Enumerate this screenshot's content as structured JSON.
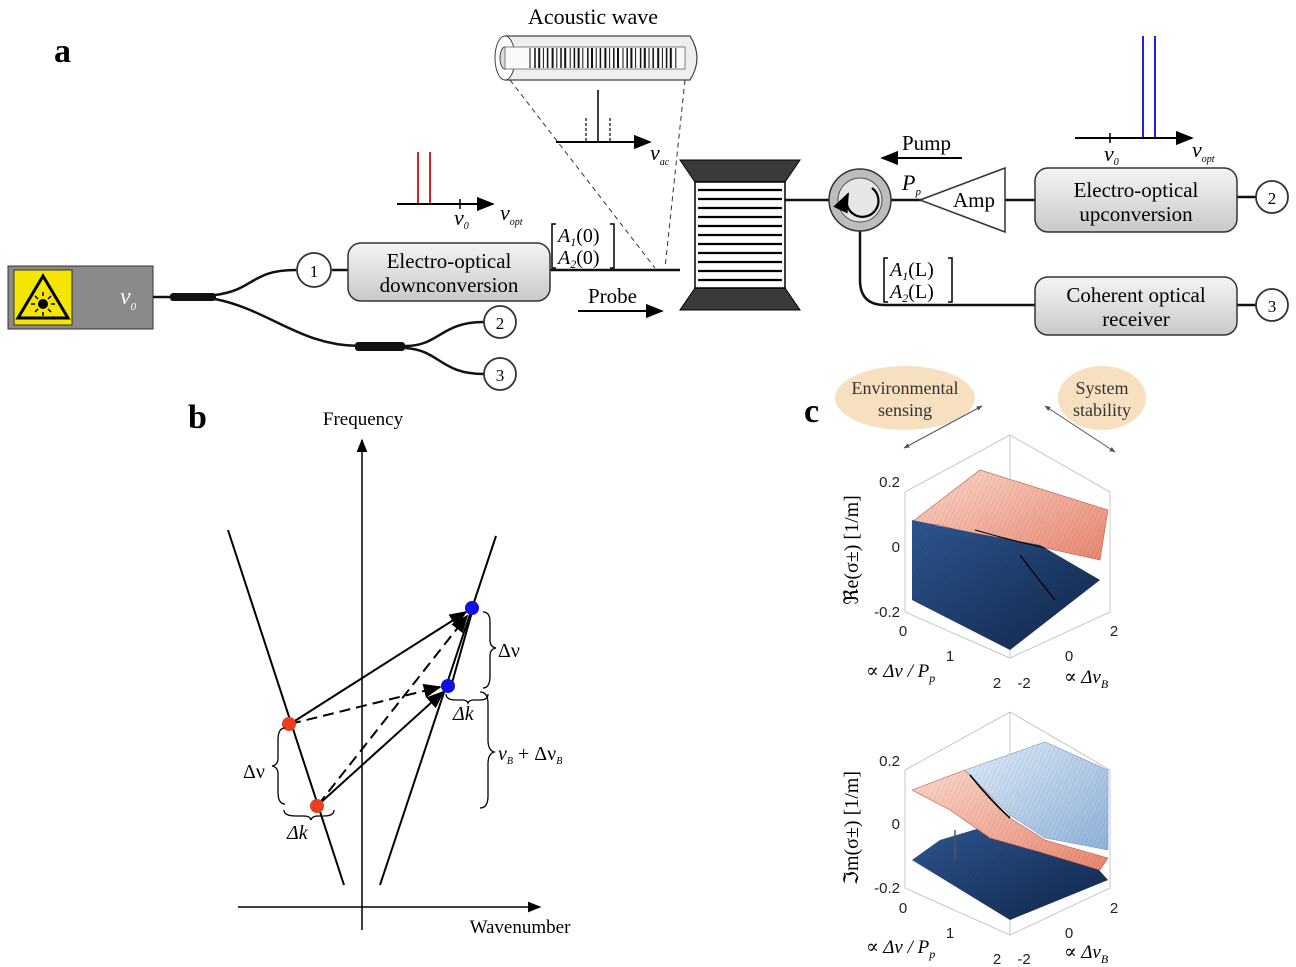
{
  "panels": {
    "a": {
      "label": "a",
      "acoustic_title": "Acoustic wave",
      "nu_ac_symbol": "ν",
      "nu_ac_sub": "ac",
      "nu_opt_symbol": "ν",
      "nu_opt_sub": "opt",
      "nu0_symbol": "ν",
      "nu0_sub": "0",
      "laser_label_symbol": "ν",
      "laser_label_sub": "0",
      "downconv_line1": "Electro-optical",
      "downconv_line2": "downconversion",
      "upconv_line1": "Electro-optical",
      "upconv_line2": "upconversion",
      "receiver_line1": "Coherent optical",
      "receiver_line2": "receiver",
      "amp_label": "Amp",
      "pump_label": "Pump",
      "pp_symbol": "P",
      "pp_sub": "p",
      "probe_label": "Probe",
      "a_in_1": "A",
      "a_in_1_sub": "1",
      "a_in_1_arg": "(0)",
      "a_in_2": "A",
      "a_in_2_sub": "2",
      "a_in_2_arg": "(0)",
      "a_out_1": "A",
      "a_out_1_sub": "1",
      "a_out_1_arg": "(L)",
      "a_out_2": "A",
      "a_out_2_sub": "2",
      "a_out_2_arg": "(L)",
      "ports": [
        "1",
        "2",
        "3",
        "2",
        "3"
      ]
    },
    "b": {
      "label": "b",
      "y_axis": "Frequency",
      "x_axis": "Wavenumber",
      "dnu": "Δν",
      "dk": "Δk",
      "nuB_symbol": "ν",
      "nuB_sub": "B",
      "nuB_rest": " + Δν",
      "nuB_rest_sub": "B",
      "colors": {
        "red": "#e8401c",
        "blue": "#1010e0"
      }
    },
    "c": {
      "label": "c",
      "env_line1": "Environmental",
      "env_line2": "sensing",
      "stab_line1": "System",
      "stab_line2": "stability",
      "re_axis": "ℜe(σ±)  [1/m]",
      "im_axis": "ℑm(σ±)  [1/m]",
      "z_ticks": [
        "0.2",
        "0",
        "-0.2"
      ],
      "x1_ticks": [
        "0",
        "1",
        "2"
      ],
      "x2_ticks": [
        "2",
        "0",
        "-2"
      ],
      "x1_label": "∝ Δν / P",
      "x1_label_sub": "p",
      "x2_label": "∝ Δν",
      "x2_label_sub": "B",
      "colors": {
        "upper": "#f0a898",
        "lower": "#1e3e70",
        "upper_blue": "#a9c6e6",
        "bubble": "#f7e0c0"
      }
    }
  }
}
